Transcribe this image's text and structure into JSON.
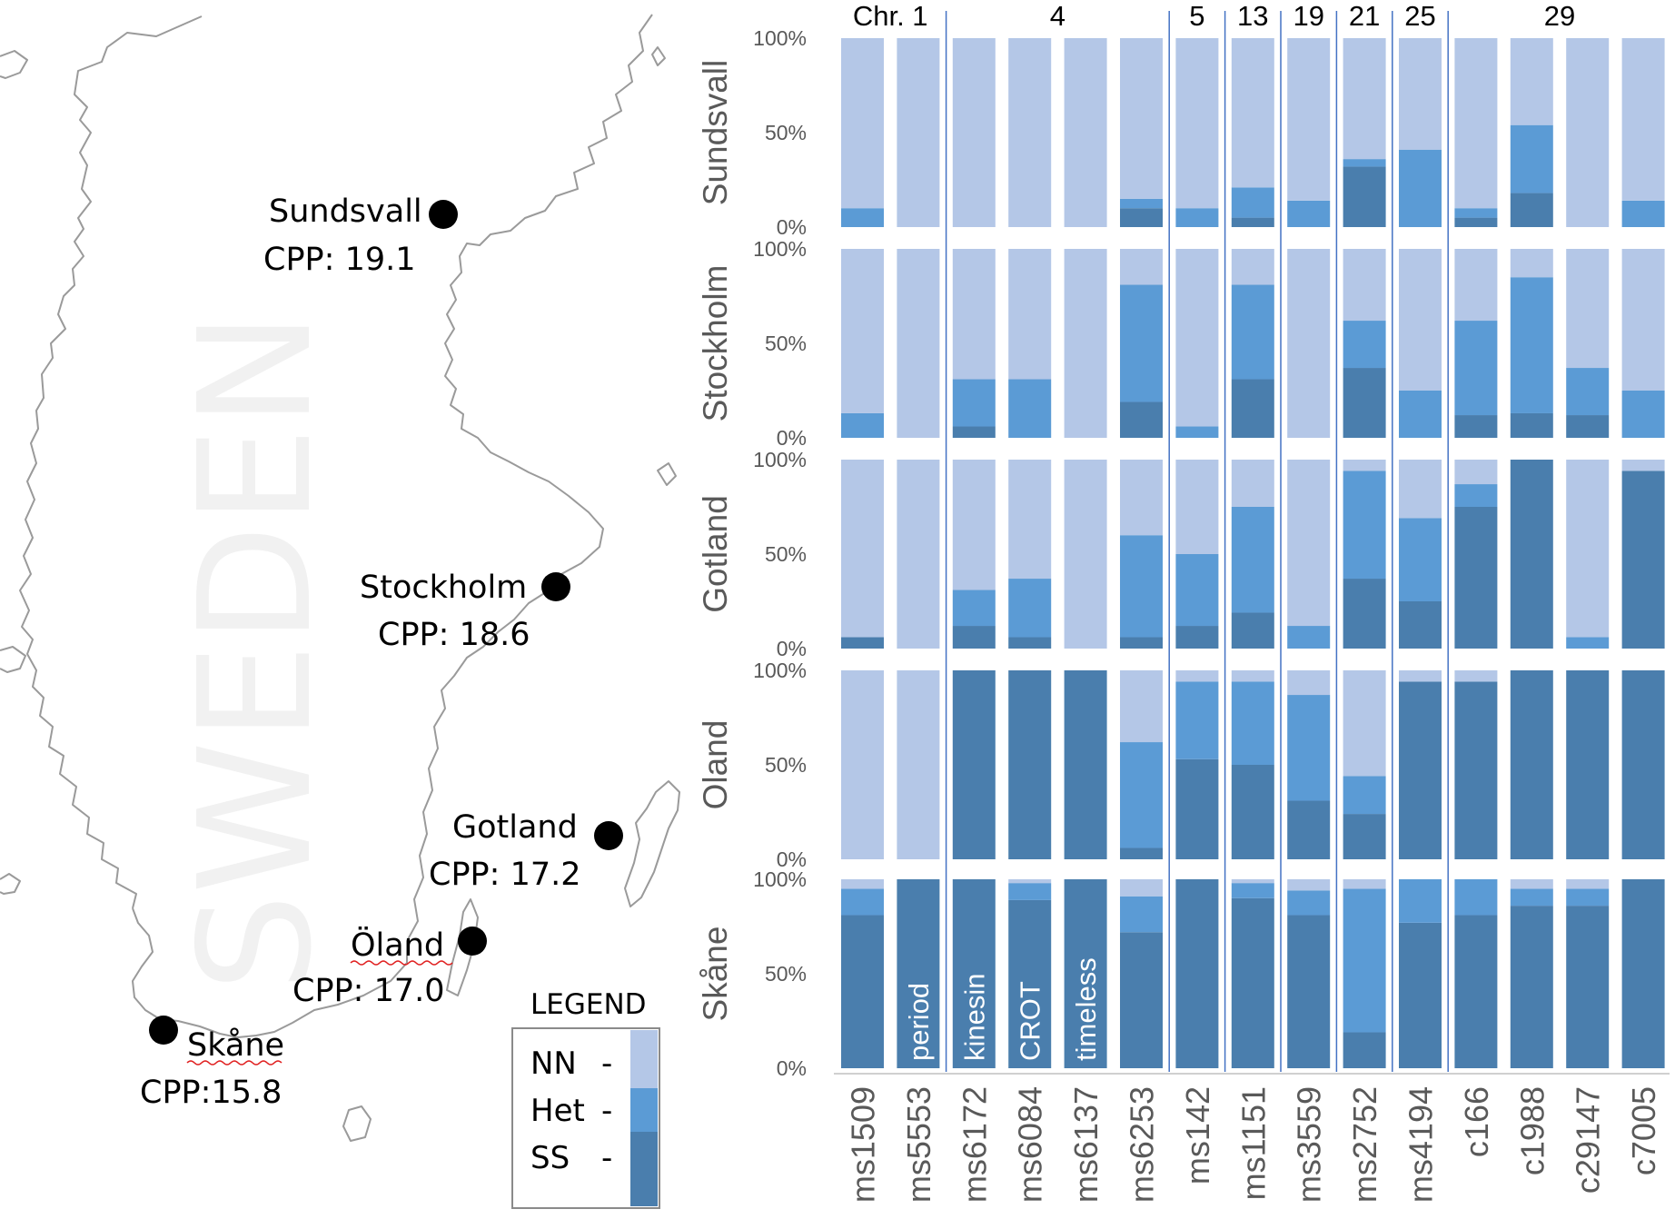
{
  "map": {
    "watermark": "SWEDEN",
    "cities": [
      {
        "name": "Sundsvall",
        "cpp": "CPP: 19.1"
      },
      {
        "name": "Stockholm",
        "cpp": "CPP: 18.6"
      },
      {
        "name": "Gotland",
        "cpp": "CPP: 17.2"
      },
      {
        "name": "Öland",
        "cpp": "CPP: 17.0"
      },
      {
        "name": "Skåne",
        "cpp": "CPP:15.8"
      }
    ],
    "legend": {
      "title": "LEGEND",
      "items": [
        {
          "label": "NN",
          "dash": "-",
          "color": "#b4c7e7"
        },
        {
          "label": "Het",
          "dash": "-",
          "color": "#5b9bd5"
        },
        {
          "label": "SS",
          "dash": "-",
          "color": "#4a7ead"
        }
      ]
    }
  },
  "chart_data": {
    "type": "bar",
    "stacked": true,
    "percent": true,
    "colors": {
      "SS": "#4a7ead",
      "Het": "#5b9bd5",
      "NN": "#b4c7e7"
    },
    "markers": [
      "ms1509",
      "ms5553",
      "ms6172",
      "ms6084",
      "ms6137",
      "ms6253",
      "ms142",
      "ms1151",
      "ms3559",
      "ms2752",
      "ms4194",
      "c166",
      "c1988",
      "c29147",
      "c7005"
    ],
    "chromosomes": [
      {
        "label": "Chr. 1",
        "markers": [
          "ms1509",
          "ms5553"
        ]
      },
      {
        "label": "4",
        "markers": [
          "ms6172",
          "ms6084",
          "ms6137",
          "ms6253"
        ]
      },
      {
        "label": "5",
        "markers": [
          "ms142"
        ]
      },
      {
        "label": "13",
        "markers": [
          "ms1151"
        ]
      },
      {
        "label": "19",
        "markers": [
          "ms3559"
        ]
      },
      {
        "label": "21",
        "markers": [
          "ms2752"
        ]
      },
      {
        "label": "25",
        "markers": [
          "ms4194"
        ]
      },
      {
        "label": "29",
        "markers": [
          "c166",
          "c1988",
          "c29147",
          "c7005"
        ]
      }
    ],
    "gene_labels": [
      {
        "marker": "ms5553",
        "label": "period"
      },
      {
        "marker": "ms6172",
        "label": "kinesin"
      },
      {
        "marker": "ms6084",
        "label": "CROT"
      },
      {
        "marker": "ms6137",
        "label": "timeless"
      }
    ],
    "ytick_labels": [
      "0%",
      "50%",
      "100%"
    ],
    "panels": [
      {
        "site": "Sundsvall",
        "SS": [
          0,
          0,
          0,
          0,
          0,
          10,
          0,
          5,
          0,
          32,
          0,
          5,
          18,
          0,
          0
        ],
        "Het": [
          10,
          0,
          0,
          0,
          0,
          5,
          10,
          16,
          14,
          4,
          41,
          5,
          36,
          0,
          14
        ]
      },
      {
        "site": "Stockholm",
        "SS": [
          0,
          0,
          6,
          0,
          0,
          19,
          0,
          31,
          0,
          37,
          0,
          12,
          13,
          12,
          0
        ],
        "Het": [
          13,
          0,
          25,
          31,
          0,
          62,
          6,
          50,
          0,
          25,
          25,
          50,
          72,
          25,
          25
        ]
      },
      {
        "site": "Gotland",
        "SS": [
          6,
          0,
          12,
          6,
          0,
          6,
          12,
          19,
          0,
          37,
          25,
          75,
          100,
          0,
          94
        ],
        "Het": [
          0,
          0,
          19,
          31,
          0,
          54,
          38,
          56,
          12,
          57,
          44,
          12,
          0,
          6,
          0
        ]
      },
      {
        "site": "Oland",
        "SS": [
          0,
          0,
          100,
          100,
          100,
          6,
          53,
          50,
          31,
          24,
          94,
          94,
          100,
          100,
          100
        ],
        "Het": [
          0,
          0,
          0,
          0,
          0,
          56,
          41,
          44,
          56,
          20,
          0,
          0,
          0,
          0,
          0
        ]
      },
      {
        "site": "Skåne",
        "SS": [
          81,
          100,
          100,
          89,
          100,
          72,
          100,
          90,
          81,
          19,
          77,
          81,
          86,
          86,
          100
        ],
        "Het": [
          14,
          0,
          0,
          9,
          0,
          19,
          0,
          8,
          13,
          76,
          23,
          19,
          9,
          9,
          0
        ]
      }
    ]
  }
}
